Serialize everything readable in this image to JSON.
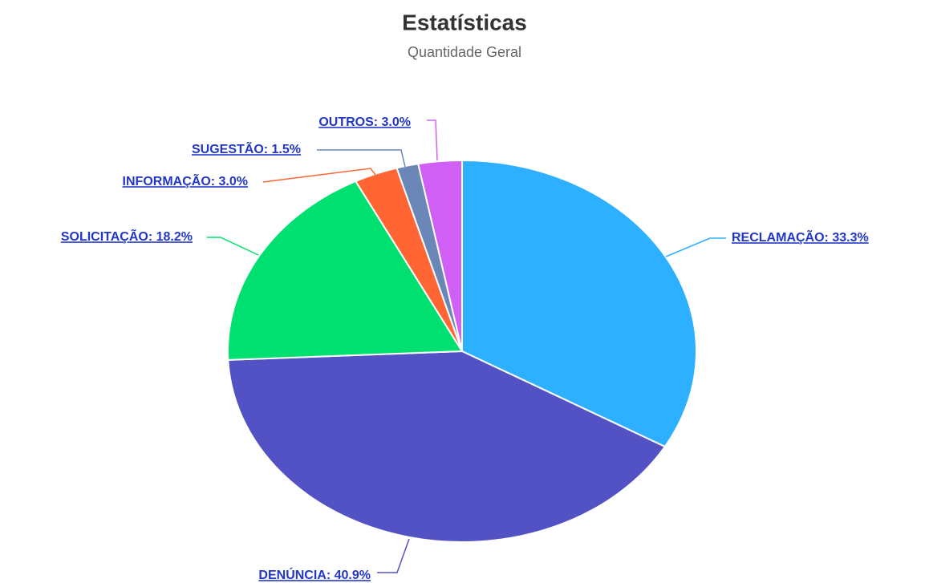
{
  "chart_data": {
    "type": "pie",
    "title": "Estatísticas",
    "subtitle": "Quantidade Geral",
    "values": [
      33.3,
      40.9,
      18.2,
      3.0,
      1.5,
      3.0
    ],
    "value_labels": [
      "RECLAMAÇÃO: 33.3%",
      "DENÚNCIA: 40.9%",
      "SOLICITAÇÃO: 18.2%",
      "INFORMAÇÃO: 3.0%",
      "SUGESTÃO: 1.5%",
      "OUTROS: 3.0%"
    ],
    "colors": [
      "#2db0ff",
      "#5352c4",
      "#00e070",
      "#ff6633",
      "#6a87b8",
      "#d060f5"
    ]
  }
}
